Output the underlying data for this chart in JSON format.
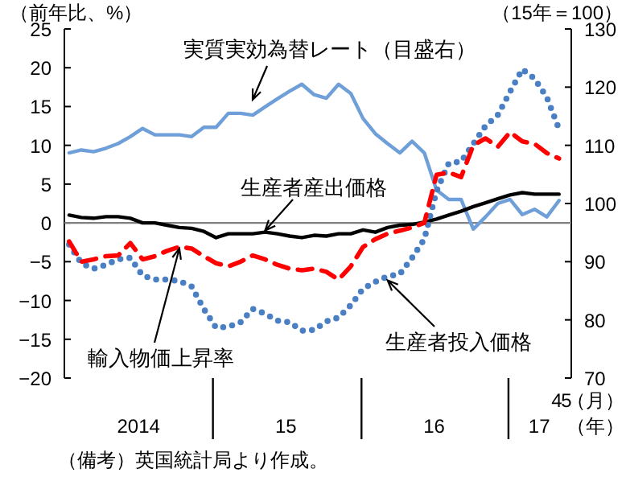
{
  "chart_data": {
    "type": "line",
    "x": [
      "2014-01",
      "2014-02",
      "2014-03",
      "2014-04",
      "2014-05",
      "2014-06",
      "2014-07",
      "2014-08",
      "2014-09",
      "2014-10",
      "2014-11",
      "2014-12",
      "2015-01",
      "2015-02",
      "2015-03",
      "2015-04",
      "2015-05",
      "2015-06",
      "2015-07",
      "2015-08",
      "2015-09",
      "2015-10",
      "2015-11",
      "2015-12",
      "2016-01",
      "2016-02",
      "2016-03",
      "2016-04",
      "2016-05",
      "2016-06",
      "2016-07",
      "2016-08",
      "2016-09",
      "2016-10",
      "2016-11",
      "2016-12",
      "2017-01",
      "2017-02",
      "2017-03",
      "2017-04",
      "2017-05"
    ],
    "series": [
      {
        "color": "#6f9fd8",
        "axis": "y2",
        "line_style": "solid",
        "values": [
          108.7,
          109.2,
          108.9,
          109.5,
          110.3,
          111.5,
          112.9,
          111.8,
          111.8,
          111.8,
          111.5,
          113.1,
          113.1,
          115.5,
          115.5,
          115.2,
          116.6,
          118.0,
          119.3,
          120.5,
          118.7,
          118.1,
          120.5,
          118.9,
          114.6,
          112.0,
          110.3,
          108.7,
          110.7,
          108.7,
          102.3,
          100.7,
          100.7,
          95.6,
          97.7,
          100.0,
          100.7,
          98.1,
          99.0,
          97.7,
          100.5
        ]
      },
      {
        "color": "#000000",
        "line_style": "solid",
        "values": [
          1.0,
          0.7,
          0.6,
          0.8,
          0.8,
          0.6,
          0.0,
          0.0,
          -0.3,
          -0.6,
          -0.7,
          -1.1,
          -1.9,
          -1.4,
          -1.4,
          -1.4,
          -1.2,
          -1.4,
          -1.7,
          -1.9,
          -1.6,
          -1.7,
          -1.4,
          -1.4,
          -0.9,
          -1.2,
          -0.6,
          -0.3,
          -0.2,
          0.1,
          0.5,
          1.0,
          1.5,
          2.1,
          2.6,
          3.1,
          3.6,
          3.9,
          3.7,
          3.7,
          3.7
        ]
      },
      {
        "color": "#4a7fc4",
        "line_style": "dotted",
        "values": [
          -2.8,
          -5.2,
          -5.9,
          -5.4,
          -4.7,
          -4.5,
          -6.8,
          -7.3,
          -7.3,
          -7.5,
          -8.2,
          -11.1,
          -13.5,
          -13.4,
          -12.8,
          -11.1,
          -11.7,
          -12.6,
          -12.8,
          -13.9,
          -13.8,
          -12.7,
          -12.2,
          -10.6,
          -8.5,
          -7.6,
          -6.9,
          -6.6,
          -4.5,
          -2.1,
          4.1,
          7.7,
          7.9,
          10.2,
          12.5,
          13.9,
          16.9,
          19.8,
          18.6,
          16.2,
          12.1
        ]
      },
      {
        "color": "#ff0000",
        "line_style": "dashed",
        "values": [
          -2.4,
          -5.0,
          -4.7,
          -4.3,
          -4.2,
          -2.6,
          -4.7,
          -4.3,
          -3.6,
          -3.1,
          -3.3,
          -4.3,
          -5.2,
          -5.6,
          -5.0,
          -4.2,
          -4.7,
          -5.4,
          -5.9,
          -6.1,
          -5.9,
          -6.3,
          -7.3,
          -5.6,
          -3.1,
          -2.1,
          -1.4,
          -1.0,
          -0.6,
          0.0,
          6.2,
          6.5,
          5.9,
          10.0,
          10.9,
          9.8,
          11.7,
          10.5,
          10.2,
          9.0,
          8.3
        ]
      }
    ],
    "xlim": [
      "2013-12-20",
      "2017-06-01"
    ],
    "xticks": [
      {
        "value": "2014-12-24",
        "label": null
      },
      {
        "value": "2015-12-28",
        "label": null
      },
      {
        "value": "2016-12-28",
        "label": null
      },
      {
        "value": "2014-06-21",
        "label": "2014"
      },
      {
        "value": "2015-06-22",
        "label": "15"
      },
      {
        "value": "2016-06-25",
        "label": "16"
      },
      {
        "value": "2017-03-13",
        "label": "17"
      }
    ],
    "ylim": [
      -20,
      25
    ],
    "yticks": [
      -20,
      -15,
      -10,
      -5,
      0,
      5,
      10,
      15,
      20,
      25
    ],
    "y2lim": [
      70,
      130
    ],
    "y2ticks": [
      70,
      80,
      90,
      100,
      110,
      120,
      130
    ],
    "ylabel": "（前年比、%）",
    "y2label": "（15年＝100）",
    "xlabel": "（年）",
    "ref_lines": [
      {
        "axis": "y",
        "value": 0,
        "color": "#808080"
      }
    ],
    "annotations": [
      "実質実効為替レート（目盛右）",
      {
        "text": "生産者産出価格",
        "x": "2015-05",
        "y": -1.0
      },
      {
        "text": "輸入物価上昇率",
        "x": "2014-10",
        "y": -3.3
      },
      {
        "text": "生産者投入価格",
        "x": "2016-03",
        "y": -7.4
      },
      "（備考）英国統計局より作成。",
      "4",
      "5",
      "（月）"
    ],
    "grid": false
  }
}
